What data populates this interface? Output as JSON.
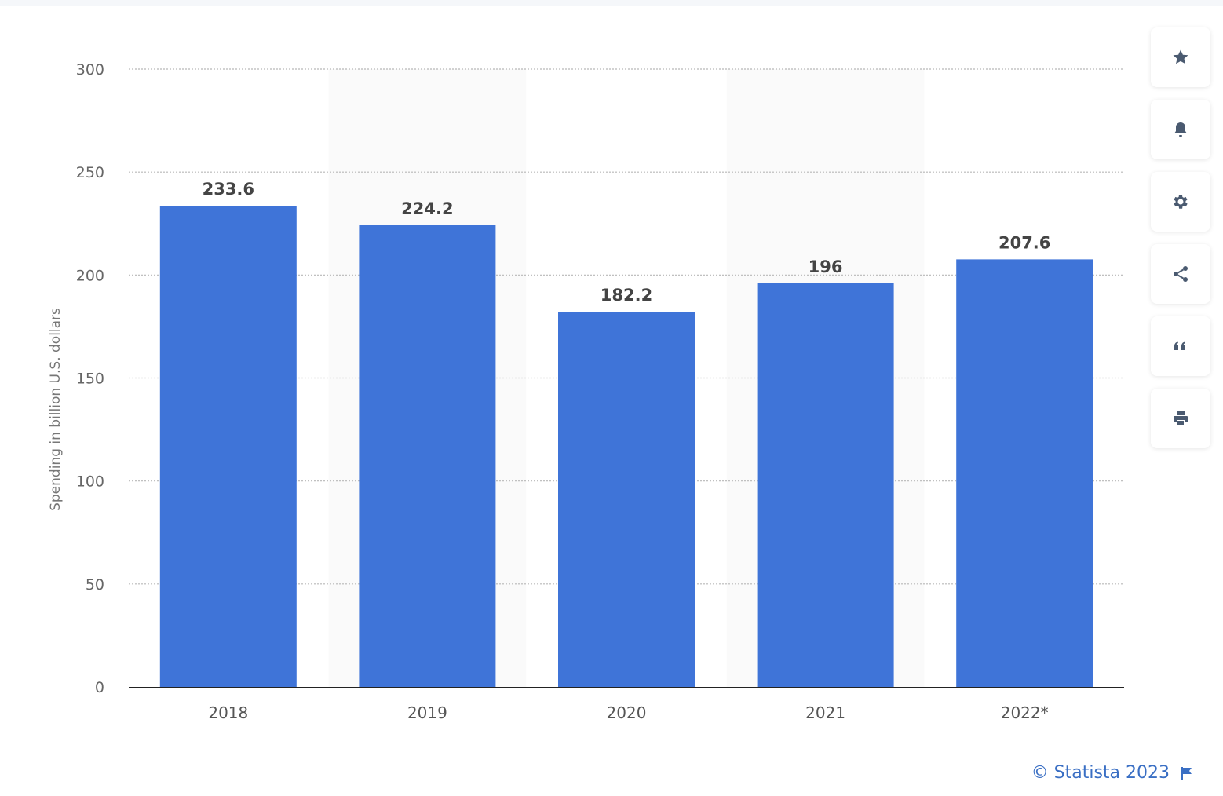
{
  "chart_data": {
    "type": "bar",
    "categories": [
      "2018",
      "2019",
      "2020",
      "2021",
      "2022*"
    ],
    "values": [
      233.6,
      224.2,
      182.2,
      196,
      207.6
    ],
    "value_labels": [
      "233.6",
      "224.2",
      "182.2",
      "196",
      "207.6"
    ],
    "title": "",
    "xlabel": "",
    "ylabel": "Spending in billion U.S. dollars",
    "ylim": [
      0,
      300
    ],
    "yticks": [
      0,
      50,
      100,
      150,
      200,
      250,
      300
    ],
    "grid": true,
    "bar_color": "#3f74d8",
    "alternate_band_color": "#fafafa"
  },
  "toolbar": {
    "items": [
      {
        "name": "star-icon"
      },
      {
        "name": "bell-icon"
      },
      {
        "name": "gear-icon"
      },
      {
        "name": "share-icon"
      },
      {
        "name": "quote-icon"
      },
      {
        "name": "print-icon"
      }
    ]
  },
  "credit": {
    "text": "© Statista 2023",
    "icon": "flag-icon"
  }
}
